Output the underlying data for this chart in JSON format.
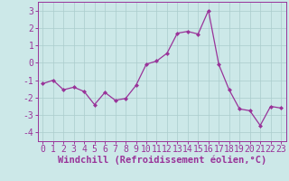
{
  "x": [
    0,
    1,
    2,
    3,
    4,
    5,
    6,
    7,
    8,
    9,
    10,
    11,
    12,
    13,
    14,
    15,
    16,
    17,
    18,
    19,
    20,
    21,
    22,
    23
  ],
  "y": [
    -1.2,
    -1.0,
    -1.55,
    -1.4,
    -1.65,
    -2.4,
    -1.7,
    -2.15,
    -2.05,
    -1.3,
    -0.08,
    0.1,
    0.55,
    1.7,
    1.8,
    1.65,
    3.0,
    -0.1,
    -1.55,
    -2.65,
    -2.75,
    -3.6,
    -2.5,
    -2.6
  ],
  "line_color": "#993399",
  "marker": "D",
  "marker_size": 2.0,
  "bg_color": "#cce8e8",
  "grid_color": "#aacccc",
  "xlabel": "Windchill (Refroidissement éolien,°C)",
  "xlim": [
    -0.5,
    23.5
  ],
  "ylim": [
    -4.5,
    3.5
  ],
  "yticks": [
    -4,
    -3,
    -2,
    -1,
    0,
    1,
    2,
    3
  ],
  "xticks": [
    0,
    1,
    2,
    3,
    4,
    5,
    6,
    7,
    8,
    9,
    10,
    11,
    12,
    13,
    14,
    15,
    16,
    17,
    18,
    19,
    20,
    21,
    22,
    23
  ],
  "xlabel_fontsize": 7.5,
  "tick_fontsize": 7.0,
  "spine_color": "#993399",
  "linewidth": 0.9
}
